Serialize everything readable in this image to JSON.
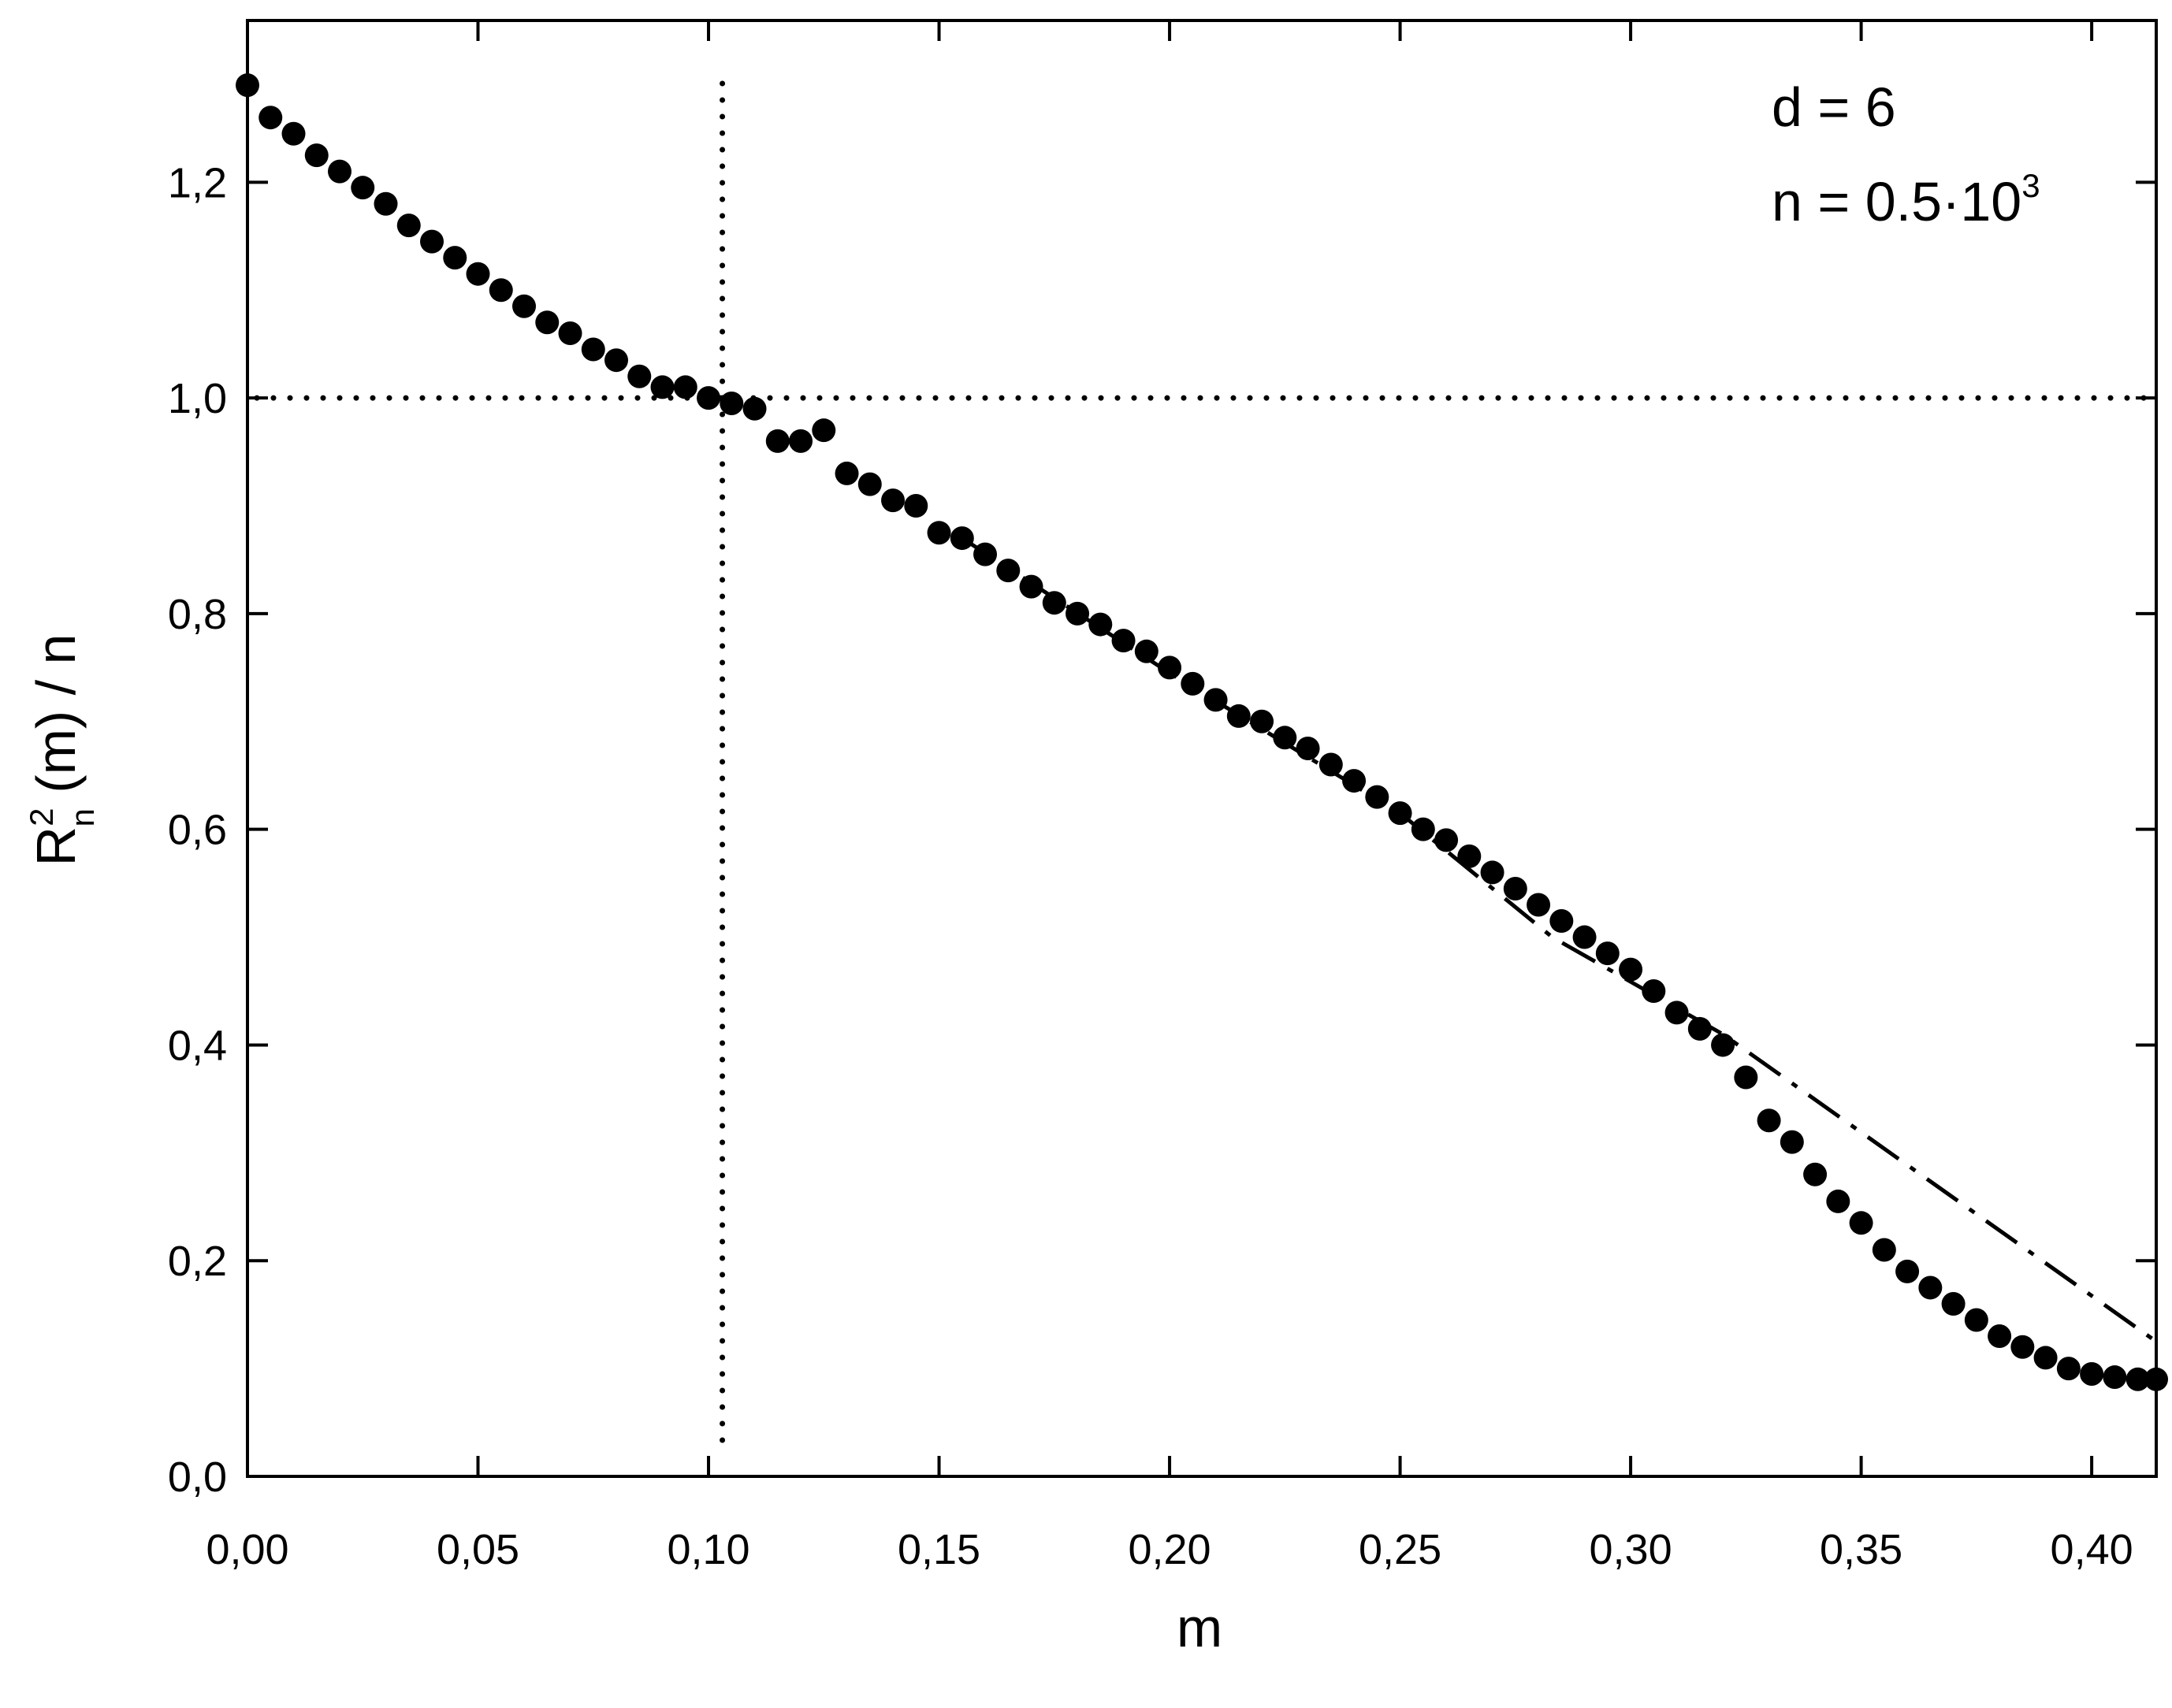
{
  "chart_data": {
    "type": "scatter",
    "xlabel": "m",
    "ylabel": {
      "base": "R",
      "sup": "2",
      "sub": "n",
      "rest": " (m) / n"
    },
    "annotations": [
      {
        "text": "d = 6"
      },
      {
        "text": "n = 0.5·10",
        "sup": "3"
      }
    ],
    "xlim": [
      0,
      0.414
    ],
    "ylim": [
      0,
      1.35
    ],
    "xticks": [
      {
        "value": 0,
        "label": "0,00"
      },
      {
        "value": 0.05,
        "label": "0,05"
      },
      {
        "value": 0.1,
        "label": "0,10"
      },
      {
        "value": 0.15,
        "label": "0,15"
      },
      {
        "value": 0.2,
        "label": "0,20"
      },
      {
        "value": 0.25,
        "label": "0,25"
      },
      {
        "value": 0.3,
        "label": "0,30"
      },
      {
        "value": 0.35,
        "label": "0,35"
      },
      {
        "value": 0.4,
        "label": "0,40"
      }
    ],
    "yticks": [
      {
        "value": 0,
        "label": "0,0"
      },
      {
        "value": 0.2,
        "label": "0,2"
      },
      {
        "value": 0.4,
        "label": "0,4"
      },
      {
        "value": 0.6,
        "label": "0,6"
      },
      {
        "value": 0.8,
        "label": "0,8"
      },
      {
        "value": 1,
        "label": "1,0"
      },
      {
        "value": 1.2,
        "label": "1,2"
      }
    ],
    "vlines": [
      0.103
    ],
    "hlines": [
      1.0
    ],
    "series": [
      {
        "color": "#000000",
        "kind": "points",
        "x": [
          0,
          0.005,
          0.01,
          0.015,
          0.02,
          0.025,
          0.03,
          0.035,
          0.04,
          0.045,
          0.05,
          0.055,
          0.06,
          0.065,
          0.07,
          0.075,
          0.08,
          0.085,
          0.09,
          0.095,
          0.1,
          0.105,
          0.11,
          0.115,
          0.12,
          0.125,
          0.13,
          0.135,
          0.14,
          0.145,
          0.15,
          0.155,
          0.16,
          0.165,
          0.17,
          0.175,
          0.18,
          0.185,
          0.19,
          0.195,
          0.2,
          0.205,
          0.21,
          0.215,
          0.22,
          0.225,
          0.23,
          0.235,
          0.24,
          0.245,
          0.25,
          0.255,
          0.26,
          0.265,
          0.27,
          0.275,
          0.28,
          0.285,
          0.29,
          0.295,
          0.3,
          0.305,
          0.31,
          0.315,
          0.32,
          0.325,
          0.33,
          0.335,
          0.34,
          0.345,
          0.35,
          0.355,
          0.36,
          0.365,
          0.37,
          0.375,
          0.38,
          0.385,
          0.39,
          0.395,
          0.4,
          0.405,
          0.41,
          0.414
        ],
        "values": [
          1.29,
          1.26,
          1.245,
          1.225,
          1.21,
          1.195,
          1.18,
          1.16,
          1.145,
          1.13,
          1.115,
          1.1,
          1.085,
          1.07,
          1.06,
          1.045,
          1.035,
          1.02,
          1.01,
          1.01,
          1.0,
          0.995,
          0.99,
          0.96,
          0.96,
          0.97,
          0.93,
          0.92,
          0.905,
          0.9,
          0.875,
          0.87,
          0.855,
          0.84,
          0.825,
          0.81,
          0.8,
          0.79,
          0.775,
          0.765,
          0.75,
          0.735,
          0.72,
          0.705,
          0.7,
          0.685,
          0.675,
          0.66,
          0.645,
          0.63,
          0.615,
          0.6,
          0.59,
          0.575,
          0.56,
          0.545,
          0.53,
          0.515,
          0.5,
          0.485,
          0.47,
          0.45,
          0.43,
          0.415,
          0.4,
          0.37,
          0.33,
          0.31,
          0.28,
          0.255,
          0.235,
          0.21,
          0.19,
          0.175,
          0.16,
          0.145,
          0.13,
          0.12,
          0.11,
          0.1,
          0.095,
          0.092,
          0.09,
          0.09
        ]
      },
      {
        "color": "#000000",
        "kind": "dashdot",
        "x": [
          0.155,
          0.2,
          0.25,
          0.283,
          0.32,
          0.414
        ],
        "values": [
          0.87,
          0.745,
          0.615,
          0.5,
          0.41,
          0.125
        ]
      }
    ]
  }
}
